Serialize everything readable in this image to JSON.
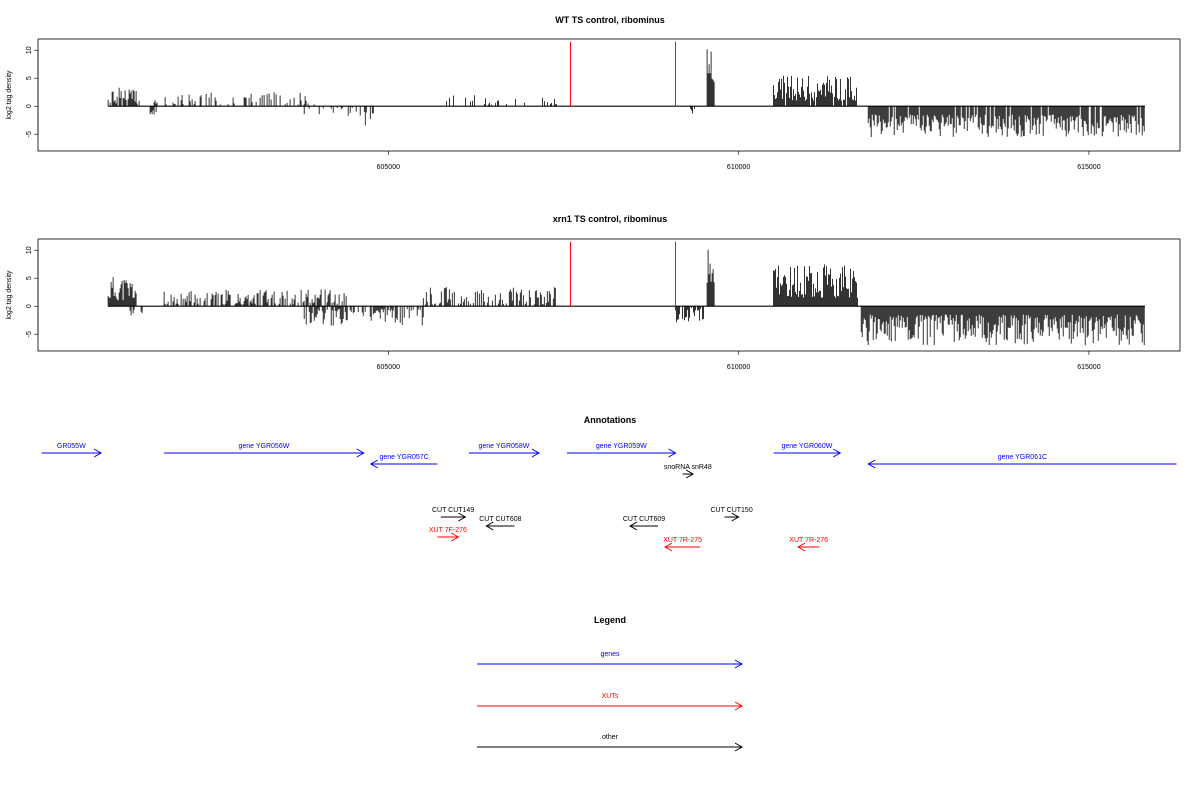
{
  "colors": {
    "gene": "#0000ff",
    "xut": "#ff0000",
    "other": "#000000",
    "marker": "#ff0000",
    "signal": "#000000"
  },
  "chart_data": [
    {
      "type": "bar",
      "title": "WT TS control, ribominus",
      "ylabel": "log2 tag density",
      "xlim": [
        600000,
        616300
      ],
      "ylim": [
        -8,
        12
      ],
      "xticks": [
        605000,
        610000,
        615000
      ],
      "xtick_labels": [
        "605000",
        "610000",
        "615000"
      ],
      "yticks": [
        -5,
        0,
        5,
        10
      ],
      "ytick_labels": [
        "-5",
        "0",
        "5",
        "10"
      ],
      "grid": false,
      "markers": [
        607600,
        609100
      ],
      "segments": [
        {
          "start": 601000,
          "end": 601400,
          "sign": 1,
          "min": 0.5,
          "max": 3.5,
          "density": 0.9,
          "seed": 1
        },
        {
          "start": 601400,
          "end": 604000,
          "sign": 1,
          "min": 0.3,
          "max": 2.5,
          "density": 0.3,
          "seed": 2
        },
        {
          "start": 601600,
          "end": 601700,
          "sign": -1,
          "min": 0.5,
          "max": 1.5,
          "density": 0.5,
          "seed": 3
        },
        {
          "start": 603800,
          "end": 604600,
          "sign": -1,
          "min": 0.3,
          "max": 2.0,
          "density": 0.3,
          "seed": 4
        },
        {
          "start": 604600,
          "end": 604800,
          "sign": -1,
          "min": 1.0,
          "max": 3.5,
          "density": 0.5,
          "seed": 5
        },
        {
          "start": 605800,
          "end": 607400,
          "sign": 1,
          "min": 0.3,
          "max": 2.0,
          "density": 0.2,
          "seed": 6
        },
        {
          "start": 609300,
          "end": 609400,
          "sign": -1,
          "min": 0.3,
          "max": 1.5,
          "density": 0.5,
          "seed": 7
        },
        {
          "start": 609550,
          "end": 609650,
          "sign": 1,
          "min": 4.0,
          "max": 11.0,
          "density": 1.0,
          "seed": 8
        },
        {
          "start": 610500,
          "end": 611700,
          "sign": 1,
          "min": 1.0,
          "max": 5.5,
          "density": 0.9,
          "seed": 9
        },
        {
          "start": 611850,
          "end": 615800,
          "sign": -1,
          "min": 1.5,
          "max": 5.5,
          "density": 0.9,
          "seed": 10
        }
      ]
    },
    {
      "type": "bar",
      "title": "xrn1 TS control, ribominus",
      "ylabel": "log2 tag density",
      "xlim": [
        600000,
        616300
      ],
      "ylim": [
        -8,
        12
      ],
      "xticks": [
        605000,
        610000,
        615000
      ],
      "xtick_labels": [
        "605000",
        "610000",
        "615000"
      ],
      "yticks": [
        -5,
        0,
        5,
        10
      ],
      "ytick_labels": [
        "-5",
        "0",
        "5",
        "10"
      ],
      "grid": false,
      "markers": [
        607600,
        609100
      ],
      "segments": [
        {
          "start": 601000,
          "end": 601400,
          "sign": 1,
          "min": 1.0,
          "max": 5.5,
          "density": 1.0,
          "seed": 11
        },
        {
          "start": 601300,
          "end": 601500,
          "sign": -1,
          "min": 0.5,
          "max": 2.0,
          "density": 0.5,
          "seed": 12
        },
        {
          "start": 601800,
          "end": 604400,
          "sign": 1,
          "min": 0.3,
          "max": 3.0,
          "density": 0.6,
          "seed": 13
        },
        {
          "start": 603800,
          "end": 605500,
          "sign": -1,
          "min": 0.5,
          "max": 3.5,
          "density": 0.7,
          "seed": 14
        },
        {
          "start": 605500,
          "end": 607400,
          "sign": 1,
          "min": 0.3,
          "max": 3.5,
          "density": 0.6,
          "seed": 15
        },
        {
          "start": 609100,
          "end": 609500,
          "sign": -1,
          "min": 0.3,
          "max": 3.0,
          "density": 0.7,
          "seed": 16
        },
        {
          "start": 609550,
          "end": 609650,
          "sign": 1,
          "min": 4.0,
          "max": 11.0,
          "density": 1.0,
          "seed": 17
        },
        {
          "start": 610500,
          "end": 611700,
          "sign": 1,
          "min": 1.5,
          "max": 7.5,
          "density": 1.0,
          "seed": 18
        },
        {
          "start": 611750,
          "end": 615800,
          "sign": -1,
          "min": 1.5,
          "max": 7.0,
          "density": 1.0,
          "seed": 19
        }
      ]
    }
  ],
  "annotations": {
    "title": "Annotations",
    "features": [
      {
        "label": "GR055W",
        "start": 600050,
        "end": 600900,
        "strand": "+",
        "type": "gene",
        "row": 0
      },
      {
        "label": "gene YGR056W",
        "start": 601800,
        "end": 604650,
        "strand": "+",
        "type": "gene",
        "row": 0
      },
      {
        "label": "gene YGR057C",
        "start": 604750,
        "end": 605700,
        "strand": "-",
        "type": "gene",
        "row": 1
      },
      {
        "label": "gene YGR058W",
        "start": 606150,
        "end": 607150,
        "strand": "+",
        "type": "gene",
        "row": 0
      },
      {
        "label": "gene YGR059W",
        "start": 607550,
        "end": 609100,
        "strand": "+",
        "type": "gene",
        "row": 0
      },
      {
        "label": "snoRNA snR48",
        "start": 609200,
        "end": 609350,
        "strand": "+",
        "type": "other",
        "row": 2
      },
      {
        "label": "gene YGR060W",
        "start": 610500,
        "end": 611450,
        "strand": "+",
        "type": "gene",
        "row": 0
      },
      {
        "label": "gene YGR061C",
        "start": 611850,
        "end": 616250,
        "strand": "-",
        "type": "gene",
        "row": 1
      },
      {
        "label": "CUT CUT149",
        "start": 605750,
        "end": 606100,
        "strand": "+",
        "type": "other",
        "row": 3
      },
      {
        "label": "CUT CUT608",
        "start": 606400,
        "end": 606800,
        "strand": "-",
        "type": "other",
        "row": 4
      },
      {
        "label": "CUT CUT609",
        "start": 608450,
        "end": 608850,
        "strand": "-",
        "type": "other",
        "row": 4
      },
      {
        "label": "CUT CUT150",
        "start": 609800,
        "end": 610000,
        "strand": "+",
        "type": "other",
        "row": 3
      },
      {
        "label": "XUT 7F-276",
        "start": 605700,
        "end": 606000,
        "strand": "+",
        "type": "xut",
        "row": 5
      },
      {
        "label": "XUT 7R-275",
        "start": 608950,
        "end": 609450,
        "strand": "-",
        "type": "xut",
        "row": 6
      },
      {
        "label": "XUT 7R-276",
        "start": 610850,
        "end": 611150,
        "strand": "-",
        "type": "xut",
        "row": 6
      }
    ]
  },
  "legend": {
    "title": "Legend",
    "items": [
      {
        "label": "genes",
        "type": "gene"
      },
      {
        "label": "XUTs",
        "type": "xut"
      },
      {
        "label": "other",
        "type": "other"
      }
    ]
  }
}
